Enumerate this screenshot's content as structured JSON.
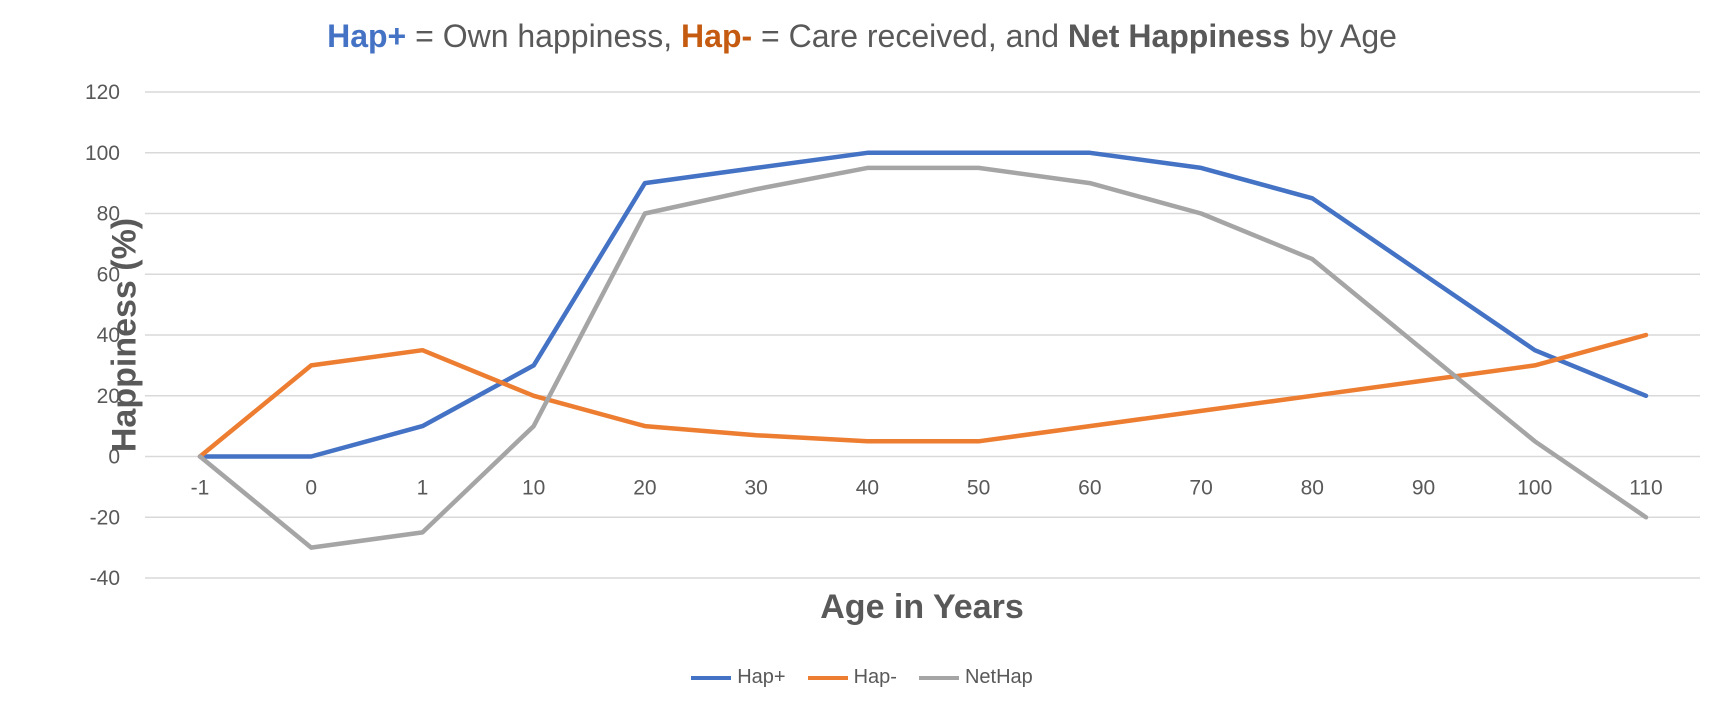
{
  "title": {
    "part1": "Hap+",
    "part2": " = Own happiness, ",
    "part3": "Hap-",
    "part4": " = Care received, and ",
    "part5": "Net Happiness",
    "part6": " by Age"
  },
  "colors": {
    "hap_plus": "#4472C4",
    "hap_minus": "#ED7D31",
    "nethap": "#A5A5A5",
    "grid": "#D9D9D9",
    "text": "#595959",
    "title_hap_minus": "#C55A11"
  },
  "chart_data": {
    "type": "line",
    "title": "Hap+ = Own happiness, Hap- = Care received, and Net Happiness by Age",
    "xlabel": "Age in Years",
    "ylabel": "Happiness (%)",
    "categories": [
      "-1",
      "0",
      "1",
      "10",
      "20",
      "30",
      "40",
      "50",
      "60",
      "70",
      "80",
      "90",
      "100",
      "110"
    ],
    "yticks": [
      "120",
      "100",
      "80",
      "60",
      "40",
      "20",
      "0",
      "-20",
      "-40"
    ],
    "ylim": [
      -40,
      120
    ],
    "grid": true,
    "legend_position": "bottom",
    "series": [
      {
        "name": "Hap+",
        "color": "#4472C4",
        "values": [
          0,
          0,
          10,
          30,
          90,
          95,
          100,
          100,
          100,
          95,
          85,
          60,
          35,
          20
        ]
      },
      {
        "name": "Hap-",
        "color": "#ED7D31",
        "values": [
          0,
          30,
          35,
          20,
          10,
          7,
          5,
          5,
          10,
          15,
          20,
          25,
          30,
          40
        ]
      },
      {
        "name": "NetHap",
        "color": "#A5A5A5",
        "values": [
          0,
          -30,
          -25,
          10,
          80,
          88,
          95,
          95,
          90,
          80,
          65,
          35,
          5,
          -20
        ]
      }
    ]
  }
}
